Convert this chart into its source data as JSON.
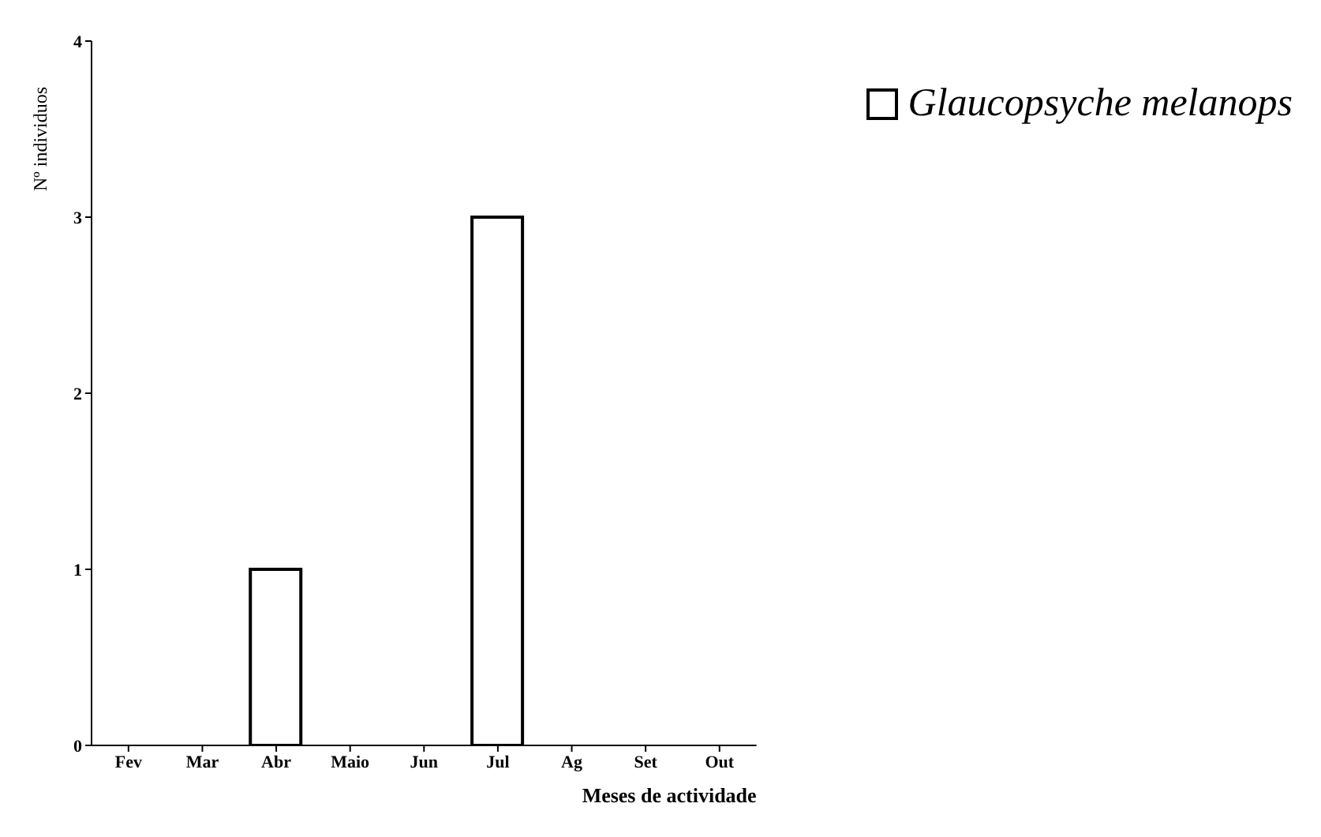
{
  "chart_data": {
    "type": "bar",
    "xlabel": "Meses de actividade",
    "ylabel": "Nº individuos",
    "categories": [
      "Fev",
      "Mar",
      "Abr",
      "Maio",
      "Jun",
      "Jul",
      "Ag",
      "Set",
      "Out"
    ],
    "series": [
      {
        "name": "Glaucopsyche melanops",
        "color": "#ffffff",
        "values": [
          0,
          0,
          1,
          0,
          0,
          3,
          0,
          0,
          0
        ]
      }
    ],
    "ylim": [
      0,
      4
    ],
    "yticks": [
      0,
      1,
      2,
      3,
      4
    ],
    "legend": "top right"
  }
}
